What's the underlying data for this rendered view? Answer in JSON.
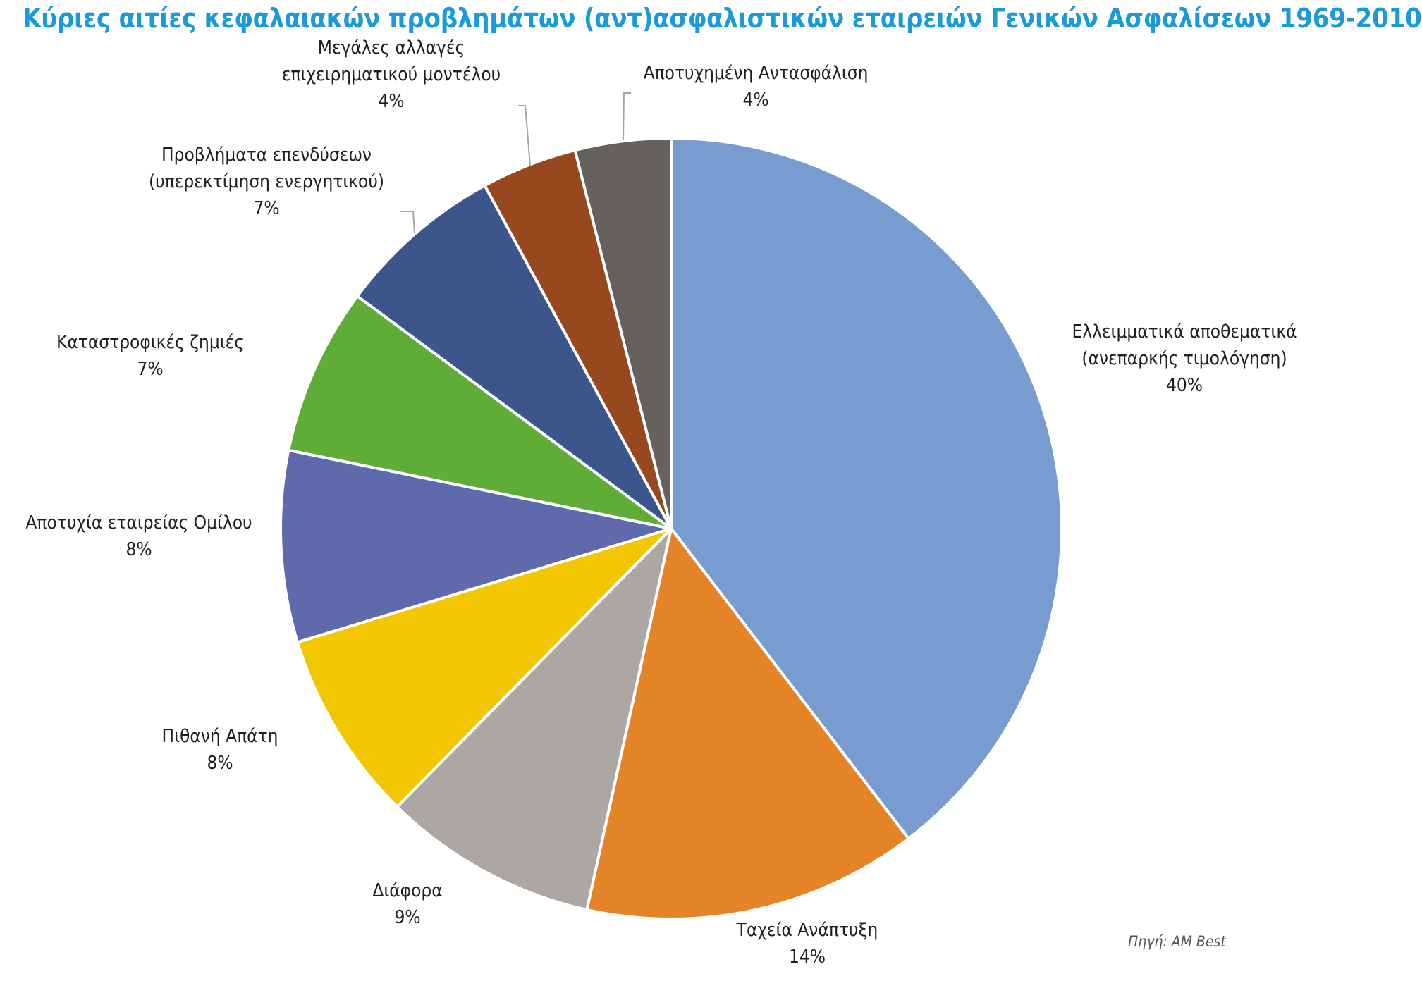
{
  "chart_data": {
    "type": "pie",
    "title": "Κύριες αιτίες κεφαλαιακών προβλημάτων (αντ)ασφαλιστικών εταιρειών Γενικών Ασφαλίσεων 1969-2010",
    "source": "Πηγή: AM Best",
    "slices": [
      {
        "label_lines": [
          "Ελλειμματικά αποθεματικά",
          "(ανεπαρκής τιμολόγηση)"
        ],
        "value": 40,
        "value_label": "40%",
        "color": "#789bd0"
      },
      {
        "label_lines": [
          "Ταχεία Ανάπτυξη"
        ],
        "value": 14,
        "value_label": "14%",
        "color": "#e58327"
      },
      {
        "label_lines": [
          "Διάφορα"
        ],
        "value": 9,
        "value_label": "9%",
        "color": "#aca7a2"
      },
      {
        "label_lines": [
          "Πιθανή Απάτη"
        ],
        "value": 8,
        "value_label": "8%",
        "color": "#f2c600"
      },
      {
        "label_lines": [
          "Αποτυχία εταιρείας Ομίλου"
        ],
        "value": 8,
        "value_label": "8%",
        "color": "#5f6aac"
      },
      {
        "label_lines": [
          "Καταστροφικές ζημιές"
        ],
        "value": 7,
        "value_label": "7%",
        "color": "#5fad36"
      },
      {
        "label_lines": [
          "Προβλήματα επενδύσεων",
          "(υπερεκτίμηση ενεργητικού)"
        ],
        "value": 7,
        "value_label": "7%",
        "color": "#3c568c"
      },
      {
        "label_lines": [
          "Μεγάλες αλλαγές",
          "επιχειρηματικού μοντέλου"
        ],
        "value": 4,
        "value_label": "4%",
        "color": "#97481e"
      },
      {
        "label_lines": [
          "Αποτυχημένη Αντασφάλιση"
        ],
        "value": 4,
        "value_label": "4%",
        "color": "#65615d"
      }
    ]
  }
}
